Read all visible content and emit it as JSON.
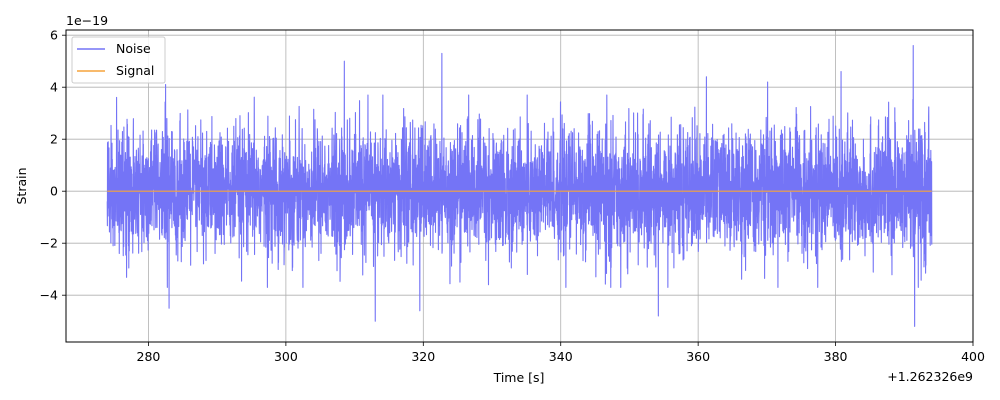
{
  "chart_data": {
    "type": "line",
    "xlabel": "Time [s]",
    "ylabel": "Strain",
    "x_offset_label": "+1.262326e9",
    "y_scale_label": "1e−19",
    "xlim": [
      268,
      400
    ],
    "ylim": [
      -5.8,
      6.2
    ],
    "x_ticks": [
      280,
      300,
      320,
      340,
      360,
      380,
      400
    ],
    "y_ticks": [
      -4,
      -2,
      0,
      2,
      4,
      6
    ],
    "x_tick_labels": [
      "280",
      "300",
      "320",
      "340",
      "360",
      "380",
      "400"
    ],
    "y_tick_labels": [
      "−4",
      "−2",
      "0",
      "2",
      "4",
      "6"
    ],
    "grid": true,
    "legend": {
      "placement": "upper-left"
    },
    "series": [
      {
        "name": "Noise",
        "color": "#7474f6",
        "style": "noise",
        "x_range": [
          274,
          394
        ],
        "typical_amplitude": 1.6,
        "peaks": [
          {
            "x": 282.5,
            "y": 4.1
          },
          {
            "x": 308.5,
            "y": 5.0
          },
          {
            "x": 322.7,
            "y": 5.3
          },
          {
            "x": 361.2,
            "y": 4.4
          },
          {
            "x": 370.1,
            "y": 4.2
          },
          {
            "x": 380.8,
            "y": 4.6
          },
          {
            "x": 391.3,
            "y": 5.6
          },
          {
            "x": 283.0,
            "y": -4.5
          },
          {
            "x": 313.0,
            "y": -5.0
          },
          {
            "x": 319.5,
            "y": -4.6
          },
          {
            "x": 354.2,
            "y": -4.8
          },
          {
            "x": 391.5,
            "y": -5.2
          }
        ]
      },
      {
        "name": "Signal",
        "color": "#f5a33c",
        "style": "line",
        "x": [
          274,
          394
        ],
        "y": [
          0,
          0
        ]
      }
    ]
  }
}
